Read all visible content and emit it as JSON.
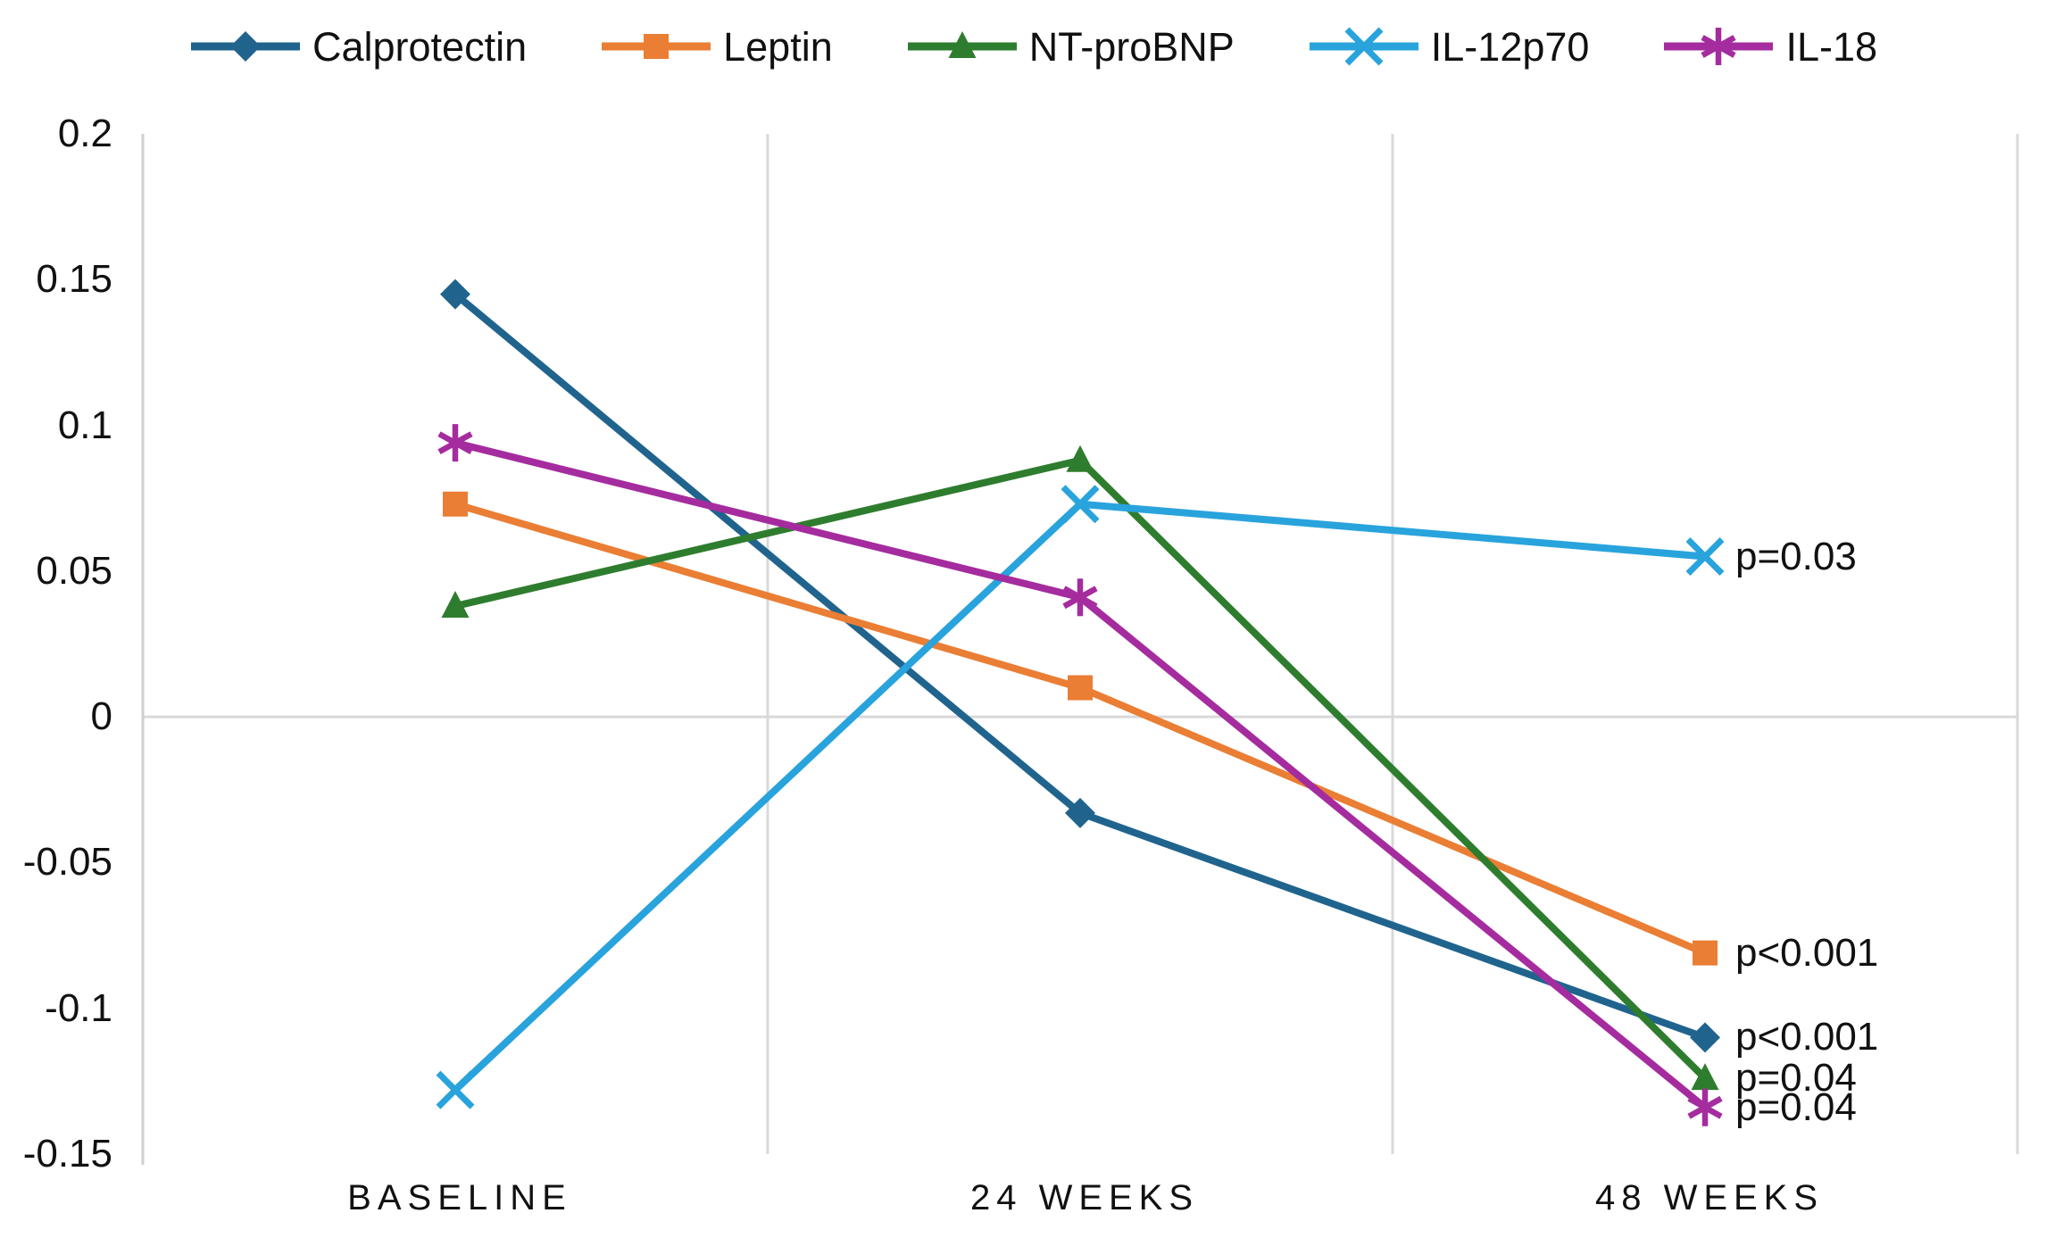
{
  "chart_data": {
    "type": "line",
    "categories": [
      "BASELINE",
      "24 WEEKS",
      "48 WEEKS"
    ],
    "series": [
      {
        "name": "Calprotectin",
        "marker": "diamond",
        "color": "#20648E",
        "values": [
          0.145,
          -0.033,
          -0.11
        ],
        "end_label": "p<0.001"
      },
      {
        "name": "Leptin",
        "marker": "square",
        "color": "#EA7E34",
        "values": [
          0.073,
          0.01,
          -0.081
        ],
        "end_label": "p<0.001"
      },
      {
        "name": "NT-proBNP",
        "marker": "triangle",
        "color": "#2E7D2E",
        "values": [
          0.038,
          0.088,
          -0.124
        ],
        "end_label": "p=0.04"
      },
      {
        "name": "IL-12p70",
        "marker": "x",
        "color": "#29A3DC",
        "values": [
          -0.128,
          0.073,
          0.055
        ],
        "end_label": "p=0.03"
      },
      {
        "name": "IL-18",
        "marker": "asterisk",
        "color": "#A52C9E",
        "values": [
          0.094,
          0.041,
          -0.134
        ],
        "end_label": "p=0.04"
      }
    ],
    "y_ticks": [
      0.2,
      0.15,
      0.1,
      0.05,
      0,
      -0.05,
      -0.1,
      -0.15
    ],
    "y_tick_labels": [
      "0.2",
      "0.15",
      "0.1",
      "0.05",
      "0",
      "-0.05",
      "-0.1",
      "-0.15"
    ],
    "ylim": [
      -0.15,
      0.2
    ],
    "grid": {
      "zero_line": true,
      "vertical_separators": true,
      "horizontal_gridlines": false
    },
    "legend_position": "top",
    "colors": {
      "gridline": "#D9D9D9",
      "axis": "#CFCFCF",
      "text": "#111111"
    }
  }
}
